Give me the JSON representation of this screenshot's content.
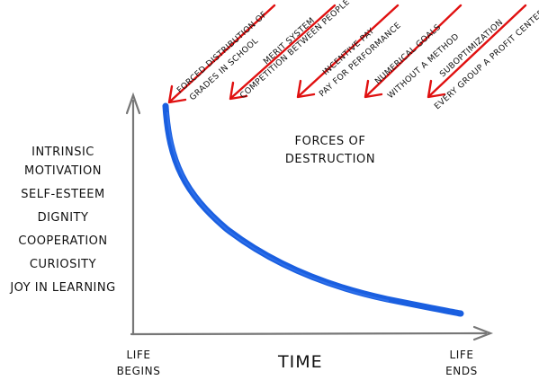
{
  "attributes": [
    "INTRINSIC",
    "MOTIVATION",
    "SELF-ESTEEM",
    "DIGNITY",
    "COOPERATION",
    "CURIOSITY",
    "JOY IN LEARNING"
  ],
  "forces": {
    "title_line1": "FORCES OF",
    "title_line2": "DESTRUCTION",
    "items": [
      {
        "line1": "FORCED DISTRIBUTION OF",
        "line2": "GRADES IN SCHOOL"
      },
      {
        "line1": "MERIT SYSTEM",
        "line2": "COMPETITION BETWEEN PEOPLE"
      },
      {
        "line1": "INCENTIVE PAY",
        "line2": "PAY FOR PERFORMANCE"
      },
      {
        "line1": "NUMERICAL GOALS",
        "line2": "WITHOUT A METHOD"
      },
      {
        "line1": "SUBOPTIMIZATION",
        "line2": "EVERY GROUP A PROFIT CENTER"
      }
    ],
    "arrow_color": "#e01010"
  },
  "axes": {
    "x_label": "TIME",
    "start_line1": "LIFE",
    "start_line2": "BEGINS",
    "end_line1": "LIFE",
    "end_line2": "ENDS",
    "color": "#777777"
  },
  "curve": {
    "color": "#1a5fe0"
  }
}
